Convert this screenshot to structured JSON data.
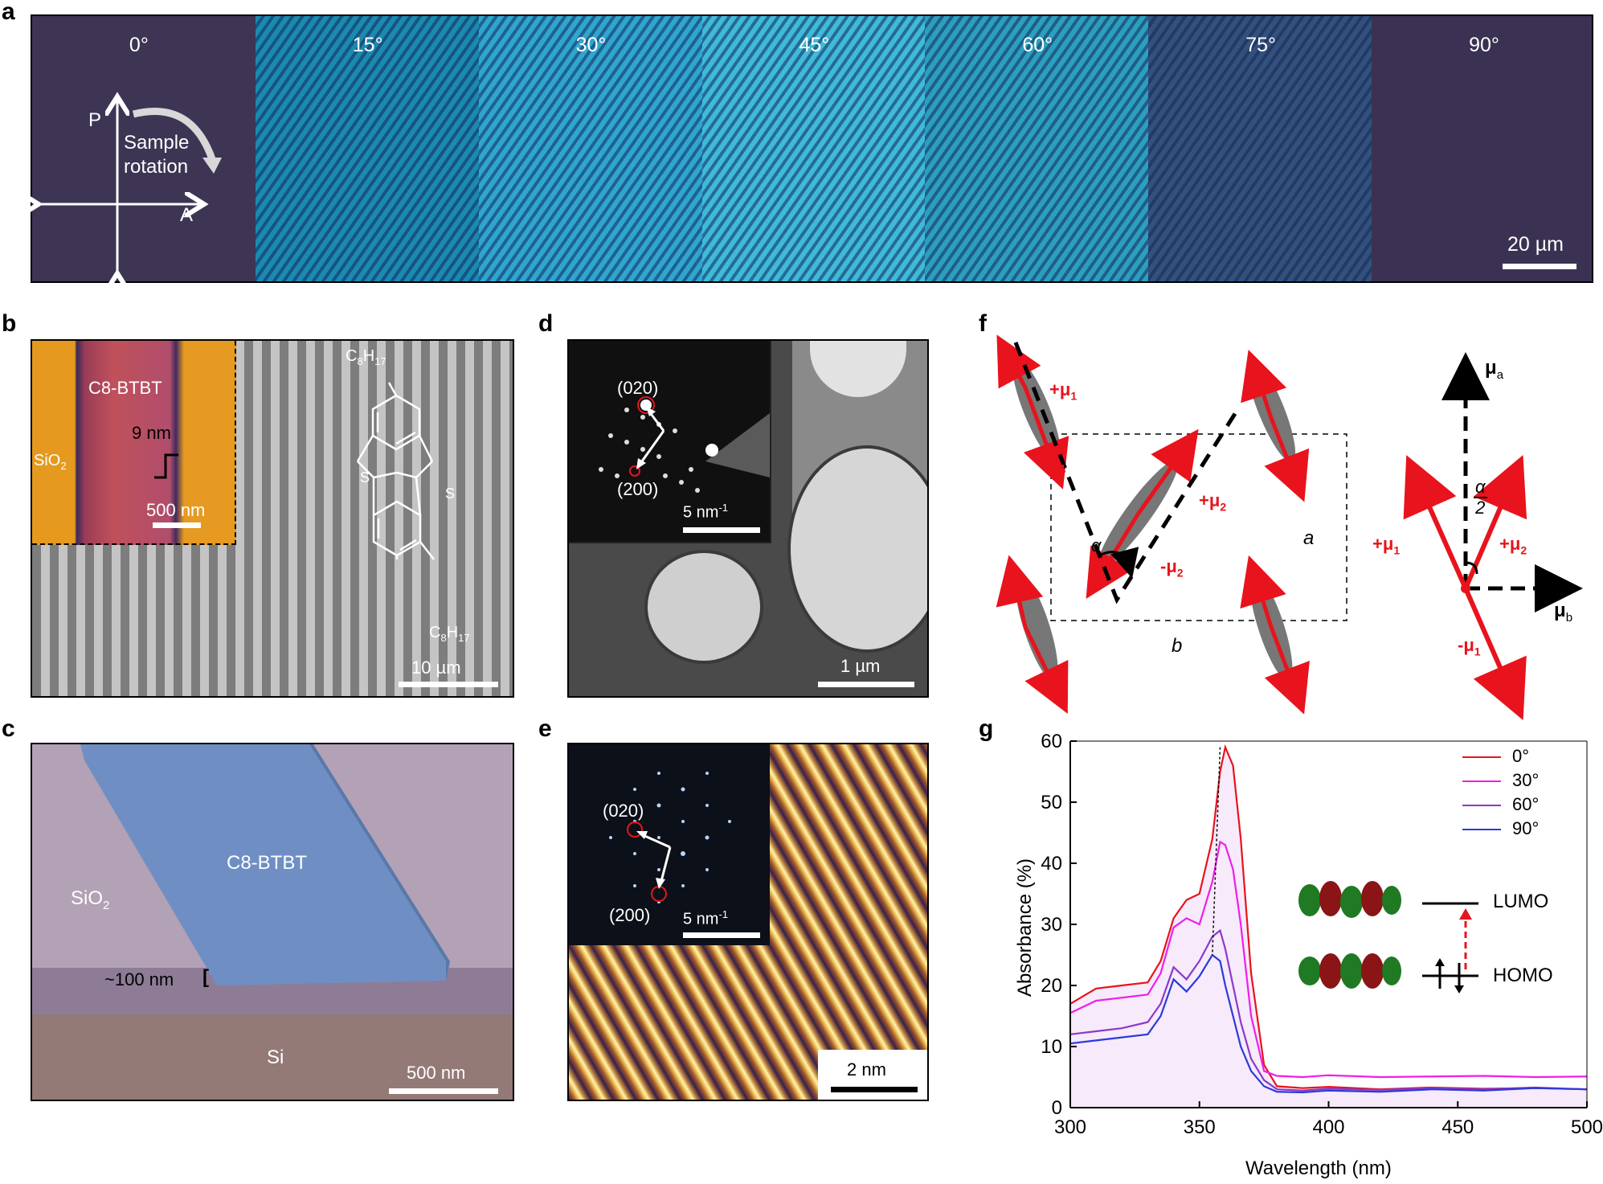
{
  "panel_labels": {
    "a": "a",
    "b": "b",
    "c": "c",
    "d": "d",
    "e": "e",
    "f": "f",
    "g": "g"
  },
  "panel_a": {
    "angles": [
      "0°",
      "15°",
      "30°",
      "45°",
      "60°",
      "75°",
      "90°"
    ],
    "tile_colors": [
      "#3e3554",
      "#1b8ab0",
      "#2fa6cf",
      "#3fbad9",
      "#2c9fbe",
      "#33517b",
      "#3b3253"
    ],
    "polarizer": "P",
    "analyzer": "A",
    "rotation_line1": "Sample",
    "rotation_line2": "rotation",
    "scale": "20 µm"
  },
  "panel_b": {
    "inset_label": "C8-BTBT",
    "substrate": "SiO",
    "substrate_sub": "2",
    "height": "9 nm",
    "inset_scale": "500 nm",
    "chain": "C",
    "chain_sub1": "8",
    "chain_h": "H",
    "chain_sub2": "17",
    "atom_s": "S",
    "scale": "10 µm"
  },
  "panel_c": {
    "film": "C8-BTBT",
    "oxide": "SiO",
    "oxide_sub": "2",
    "thickness": "~100 nm",
    "silicon": "Si",
    "scale": "500 nm"
  },
  "panel_d": {
    "reflection_1": "(020)",
    "reflection_2": "(200)",
    "inset_scale": "5 nm",
    "inset_scale_sup": "-1",
    "scale": "1 µm"
  },
  "panel_e": {
    "reflection_1": "(020)",
    "reflection_2": "(200)",
    "inset_scale": "5 nm",
    "inset_scale_sup": "-1",
    "scale": "2 nm"
  },
  "panel_f": {
    "plus_mu1": "+μ",
    "minus_mu1": "-μ",
    "plus_mu2": "+μ",
    "minus_mu2": "-μ",
    "sub1": "1",
    "sub2": "2",
    "alpha": "α",
    "axis_a": "a",
    "axis_b": "b",
    "mu": "μ",
    "sub_a": "a",
    "sub_b": "b",
    "half_num": "α",
    "half_den": "2"
  },
  "panel_g": {
    "homo": "HOMO",
    "lumo": "LUMO"
  },
  "chart_data": {
    "type": "line",
    "title": "",
    "xlabel": "Wavelength (nm)",
    "ylabel": "Absorbance (%)",
    "xlim": [
      300,
      500
    ],
    "ylim": [
      0,
      60
    ],
    "xticks": [
      300,
      350,
      400,
      450,
      500
    ],
    "yticks": [
      0,
      10,
      20,
      30,
      40,
      50,
      60
    ],
    "x": [
      300,
      310,
      320,
      330,
      335,
      340,
      345,
      350,
      355,
      358,
      360,
      363,
      366,
      370,
      375,
      380,
      390,
      400,
      420,
      440,
      460,
      480,
      500
    ],
    "series": [
      {
        "name": "0°",
        "color": "#e8131c",
        "values": [
          17,
          19.5,
          20,
          20.5,
          24,
          31,
          34,
          35,
          44,
          55,
          59,
          56,
          44,
          22,
          7,
          3.5,
          3.2,
          3.4,
          3.0,
          3.3,
          3.1,
          3.2,
          3.0
        ]
      },
      {
        "name": "30°",
        "color": "#f01ee8",
        "values": [
          15.5,
          17.5,
          18,
          18.5,
          22,
          29.5,
          31,
          30,
          37,
          43.5,
          43,
          39,
          30,
          15,
          6,
          5.2,
          5.0,
          5.3,
          5.0,
          5.1,
          5.2,
          5.0,
          5.1
        ]
      },
      {
        "name": "60°",
        "color": "#8a3ac8",
        "values": [
          12,
          12.5,
          13,
          14,
          17,
          23,
          21,
          24,
          28,
          29,
          26,
          20,
          14,
          8,
          4.5,
          3.0,
          2.8,
          3.1,
          2.9,
          3.2,
          3.0,
          3.3,
          3.0
        ]
      },
      {
        "name": "90°",
        "color": "#2a3ad8",
        "values": [
          10.5,
          11,
          11.5,
          12,
          15,
          21,
          19,
          21.5,
          25,
          24,
          20,
          15,
          10,
          6,
          3.5,
          2.6,
          2.5,
          2.8,
          2.6,
          3.0,
          2.8,
          3.2,
          3.0
        ]
      }
    ],
    "peak_marker_x": [
      358,
      355
    ],
    "legend": "top-right"
  }
}
